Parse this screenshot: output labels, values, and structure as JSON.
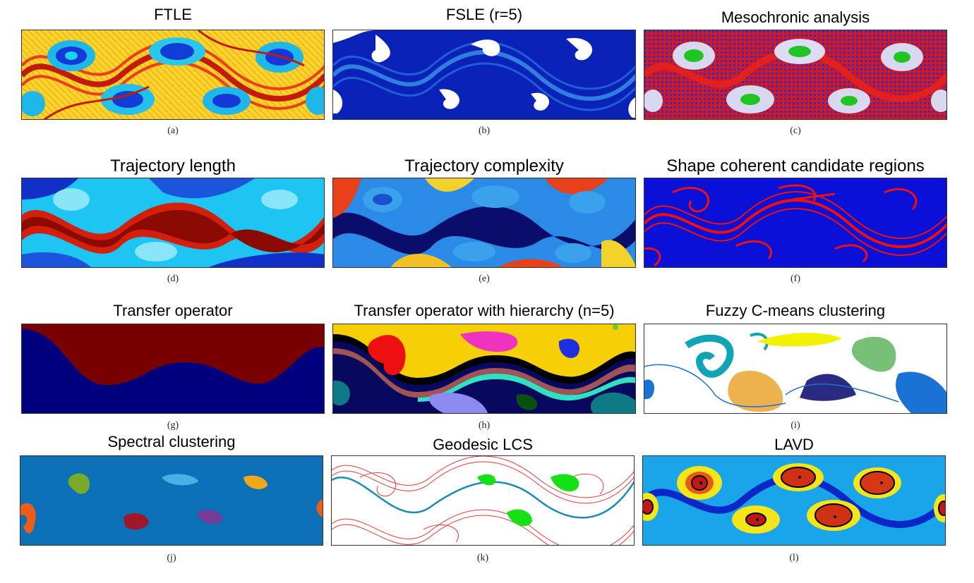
{
  "figure": {
    "panels": [
      {
        "id": "a",
        "title": "FTLE",
        "caption": "(a)",
        "style": "ftle"
      },
      {
        "id": "b",
        "title": "FSLE (r=5)",
        "caption": "(b)",
        "style": "fsle"
      },
      {
        "id": "c",
        "title": "Mesochronic analysis",
        "caption": "(c)",
        "style": "meso"
      },
      {
        "id": "d",
        "title": "Trajectory length",
        "caption": "(d)",
        "style": "tlength"
      },
      {
        "id": "e",
        "title": "Trajectory complexity",
        "caption": "(e)",
        "style": "tcomplex"
      },
      {
        "id": "f",
        "title": "Shape coherent candidate regions",
        "caption": "(f)",
        "style": "shape"
      },
      {
        "id": "g",
        "title": "Transfer operator",
        "caption": "(g)",
        "style": "transfer"
      },
      {
        "id": "h",
        "title": "Transfer operator with hierarchy (n=5)",
        "caption": "(h)",
        "style": "hierarchy"
      },
      {
        "id": "i",
        "title": "Fuzzy C-means clustering",
        "caption": "(i)",
        "style": "fuzzy"
      },
      {
        "id": "j",
        "title": "Spectral clustering",
        "caption": "(j)",
        "style": "spectral"
      },
      {
        "id": "k",
        "title": "Geodesic LCS",
        "caption": "(k)",
        "style": "geodesic"
      },
      {
        "id": "l",
        "title": "LAVD",
        "caption": "(l)",
        "style": "lavd"
      }
    ]
  }
}
